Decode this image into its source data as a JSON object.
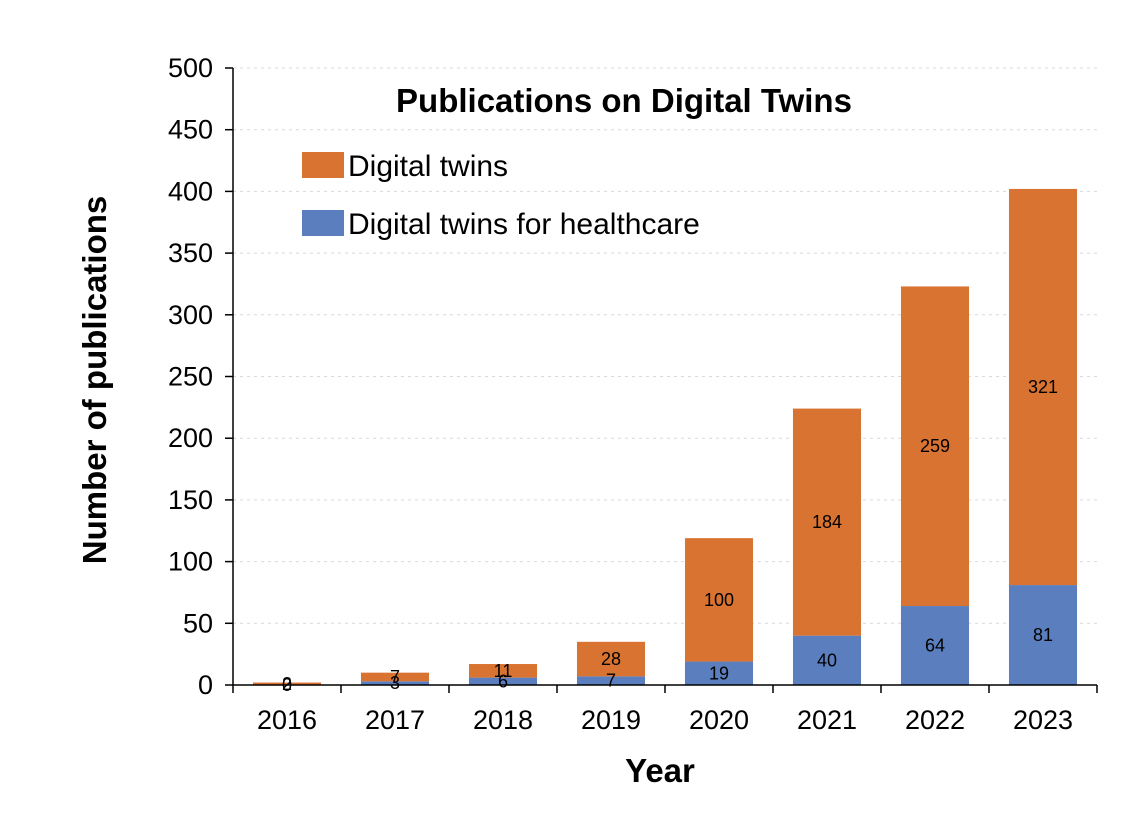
{
  "chart_data": {
    "type": "bar",
    "stacked": true,
    "title": "Publications on Digital Twins",
    "xlabel": "Year",
    "ylabel": "Number of publications",
    "categories": [
      "2016",
      "2017",
      "2018",
      "2019",
      "2020",
      "2021",
      "2022",
      "2023"
    ],
    "yticks": [
      "0",
      "50",
      "100",
      "150",
      "200",
      "250",
      "300",
      "350",
      "400",
      "450",
      "500"
    ],
    "ylim": [
      0,
      500
    ],
    "grid": true,
    "legend": "top-left",
    "series": [
      {
        "name": "Digital twins for healthcare",
        "color": "#5b7fbe",
        "values": [
          0,
          3,
          6,
          7,
          19,
          40,
          64,
          81
        ],
        "labels": [
          "0",
          "3",
          "6",
          "7",
          "19",
          "40",
          "64",
          "81"
        ]
      },
      {
        "name": "Digital twins",
        "color": "#d97332",
        "values": [
          2,
          7,
          11,
          28,
          100,
          184,
          259,
          321
        ],
        "labels": [
          "2",
          "7",
          "11",
          "28",
          "100",
          "184",
          "259",
          "321"
        ]
      }
    ],
    "legend_order": [
      1,
      0
    ]
  }
}
